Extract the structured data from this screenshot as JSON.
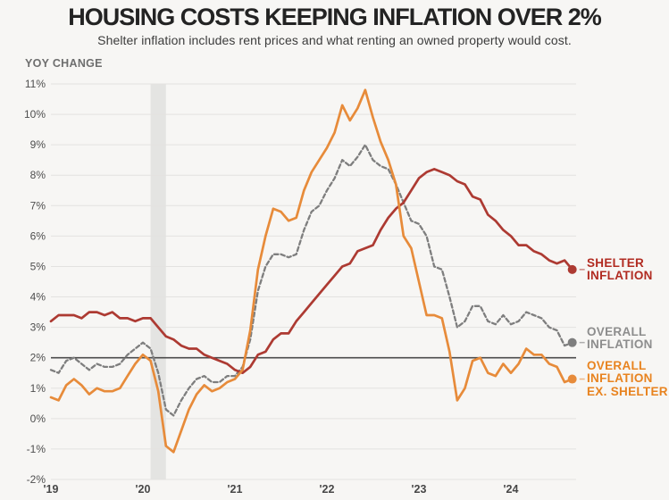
{
  "header": {
    "title": "HOUSING COSTS KEEPING INFLATION OVER 2%",
    "subtitle": "Shelter inflation includes rent prices and what renting an owned property would cost."
  },
  "labels": {
    "shelter": "SHELTER\nINFLATION",
    "overall": "OVERALL\nINFLATION",
    "ex_shelter": "OVERALL\nINFLATION\nEX. SHELTER"
  },
  "colors": {
    "background": "#f7f6f4",
    "gridline": "#e3e2e0",
    "recession_band": "#e4e4e2",
    "benchmark_line": "#4b4b4b",
    "tick_text": "#4e4e4e",
    "shelter": "#ad3a32",
    "shelter_label": "#b12b21",
    "overall": "#7e7e7e",
    "overall_label": "#8d8d8d",
    "ex_shelter": "#e78b3a",
    "ex_shelter_label": "#e8831f"
  },
  "chart_data": {
    "type": "line",
    "title": "HOUSING COSTS KEEPING INFLATION OVER 2%",
    "ylabel": "YOY CHANGE",
    "unit": "percent",
    "frequency": "monthly",
    "x_start": "2019-01",
    "x_end": "2024-09",
    "ylim": [
      -2,
      11
    ],
    "y_ticks": [
      11,
      10,
      9,
      8,
      7,
      6,
      5,
      4,
      3,
      2,
      1,
      0,
      -1,
      -2
    ],
    "y_tick_labels": [
      "11%",
      "10%",
      "9%",
      "8%",
      "7%",
      "6%",
      "5%",
      "4%",
      "3%",
      "2%",
      "1%",
      "0%",
      "-1%",
      "-2%"
    ],
    "x_tick_labels": [
      "'19",
      "'20",
      "'21",
      "'22",
      "'23",
      "'24"
    ],
    "x_tick_month_indices": [
      0,
      12,
      24,
      36,
      48,
      60
    ],
    "benchmark_value": 2,
    "recession_band_month_indices": [
      13,
      15
    ],
    "grid": true,
    "legend_position": "right-edge-labels",
    "series": [
      {
        "name": "Overall inflation",
        "dash": true,
        "color_key": "overall",
        "values": [
          1.6,
          1.5,
          1.9,
          2.0,
          1.8,
          1.6,
          1.8,
          1.7,
          1.7,
          1.8,
          2.1,
          2.3,
          2.5,
          2.3,
          1.5,
          0.3,
          0.1,
          0.6,
          1.0,
          1.3,
          1.4,
          1.2,
          1.2,
          1.4,
          1.4,
          1.7,
          2.6,
          4.2,
          5.0,
          5.4,
          5.4,
          5.3,
          5.4,
          6.2,
          6.8,
          7.0,
          7.5,
          7.9,
          8.5,
          8.3,
          8.6,
          9.0,
          8.5,
          8.3,
          8.2,
          7.7,
          7.1,
          6.5,
          6.4,
          6.0,
          5.0,
          4.9,
          4.0,
          3.0,
          3.2,
          3.7,
          3.7,
          3.2,
          3.1,
          3.4,
          3.1,
          3.2,
          3.5,
          3.4,
          3.3,
          3.0,
          2.9,
          2.4,
          2.5
        ]
      },
      {
        "name": "Shelter inflation",
        "dash": false,
        "color_key": "shelter",
        "values": [
          3.2,
          3.4,
          3.4,
          3.4,
          3.3,
          3.5,
          3.5,
          3.4,
          3.5,
          3.3,
          3.3,
          3.2,
          3.3,
          3.3,
          3.0,
          2.7,
          2.6,
          2.4,
          2.3,
          2.3,
          2.1,
          2.0,
          1.9,
          1.8,
          1.6,
          1.5,
          1.7,
          2.1,
          2.2,
          2.6,
          2.8,
          2.8,
          3.2,
          3.5,
          3.8,
          4.1,
          4.4,
          4.7,
          5.0,
          5.1,
          5.5,
          5.6,
          5.7,
          6.2,
          6.6,
          6.9,
          7.1,
          7.5,
          7.9,
          8.1,
          8.2,
          8.1,
          8.0,
          7.8,
          7.7,
          7.3,
          7.2,
          6.7,
          6.5,
          6.2,
          6.0,
          5.7,
          5.7,
          5.5,
          5.4,
          5.2,
          5.1,
          5.2,
          4.9
        ]
      },
      {
        "name": "Overall inflation ex. shelter",
        "dash": false,
        "color_key": "ex_shelter",
        "values": [
          0.7,
          0.6,
          1.1,
          1.3,
          1.1,
          0.8,
          1.0,
          0.9,
          0.9,
          1.0,
          1.4,
          1.8,
          2.1,
          1.9,
          0.9,
          -0.9,
          -1.1,
          -0.4,
          0.3,
          0.8,
          1.1,
          0.9,
          1.0,
          1.2,
          1.3,
          1.6,
          2.9,
          4.9,
          6.0,
          6.9,
          6.8,
          6.5,
          6.6,
          7.5,
          8.1,
          8.5,
          8.9,
          9.4,
          10.3,
          9.8,
          10.2,
          10.8,
          9.9,
          9.1,
          8.5,
          7.7,
          6.0,
          5.6,
          4.5,
          3.4,
          3.4,
          3.3,
          2.2,
          0.6,
          1.0,
          1.9,
          2.0,
          1.5,
          1.4,
          1.8,
          1.5,
          1.8,
          2.3,
          2.1,
          2.1,
          1.8,
          1.7,
          1.2,
          1.3
        ]
      }
    ]
  }
}
